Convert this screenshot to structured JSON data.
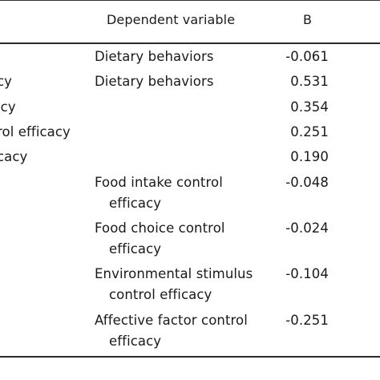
{
  "table": {
    "header": {
      "dependent_variable": "Dependent variable",
      "b": "B"
    },
    "rows": [
      {
        "independent": "",
        "dependent": [
          "Dietary behaviors"
        ],
        "b": "-0.061"
      },
      {
        "independent": "cy",
        "dependent": [
          "Dietary behaviors"
        ],
        "b": "0.531"
      },
      {
        "independent": "icy",
        "dependent": [],
        "b": "0.354"
      },
      {
        "independent": "rol efficacy",
        "dependent": [],
        "b": "0.251"
      },
      {
        "independent": "cacy",
        "dependent": [],
        "b": "0.190"
      },
      {
        "independent": "",
        "dependent": [
          "Food intake control",
          "efficacy"
        ],
        "b": "-0.048"
      },
      {
        "independent": "",
        "dependent": [
          "Food choice control",
          "efficacy"
        ],
        "b": "-0.024"
      },
      {
        "independent": "",
        "dependent": [
          "Environmental stimulus",
          "control efficacy"
        ],
        "b": "-0.104"
      },
      {
        "independent": "",
        "dependent": [
          "Affective factor control",
          "efficacy"
        ],
        "b": "-0.251"
      }
    ]
  }
}
